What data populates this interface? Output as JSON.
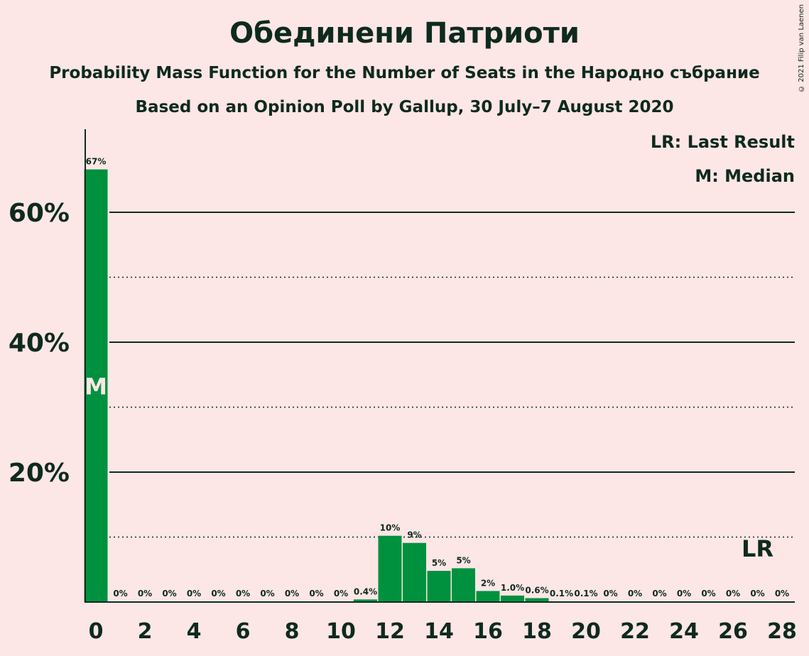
{
  "title": "Обединени Патриоти",
  "subtitle1": "Probability Mass Function for the Number of Seats in the Народно събрание",
  "subtitle2": "Based on an Opinion Poll by Gallup, 30 July–7 August 2020",
  "copyright": "© 2021 Filip van Laenen",
  "legend": {
    "last_result": "LR: Last Result",
    "median": "M: Median"
  },
  "colors": {
    "bar": "#00913f",
    "background": "#fde6e6",
    "text": "#0e2a1e"
  },
  "chart_data": {
    "type": "bar",
    "x": [
      0,
      1,
      2,
      3,
      4,
      5,
      6,
      7,
      8,
      9,
      10,
      11,
      12,
      13,
      14,
      15,
      16,
      17,
      18,
      19,
      20,
      21,
      22,
      23,
      24,
      25,
      26,
      27,
      28
    ],
    "values": [
      66.6,
      0,
      0,
      0,
      0,
      0,
      0,
      0,
      0,
      0,
      0,
      0.4,
      10.2,
      9.1,
      4.8,
      5.2,
      1.7,
      1.0,
      0.6,
      0.1,
      0.1,
      0,
      0,
      0,
      0,
      0,
      0,
      0,
      0
    ],
    "labels": [
      "67%",
      "0%",
      "0%",
      "0%",
      "0%",
      "0%",
      "0%",
      "0%",
      "0%",
      "0%",
      "0%",
      "0.4%",
      "10%",
      "9%",
      "5%",
      "5%",
      "2%",
      "1.0%",
      "0.6%",
      "0.1%",
      "0.1%",
      "0%",
      "0%",
      "0%",
      "0%",
      "0%",
      "0%",
      "0%",
      "0%"
    ],
    "xticks": [
      "0",
      "2",
      "4",
      "6",
      "8",
      "10",
      "12",
      "14",
      "16",
      "18",
      "20",
      "22",
      "24",
      "26",
      "28"
    ],
    "yticks": [
      "20%",
      "40%",
      "60%"
    ],
    "ylim": [
      0,
      72.5
    ],
    "median": 0,
    "median_label": "M",
    "last_result": 27,
    "last_result_label": "LR",
    "grid": "solid lines at 20% steps, dotted lines at 10%, 30%, 50%"
  }
}
